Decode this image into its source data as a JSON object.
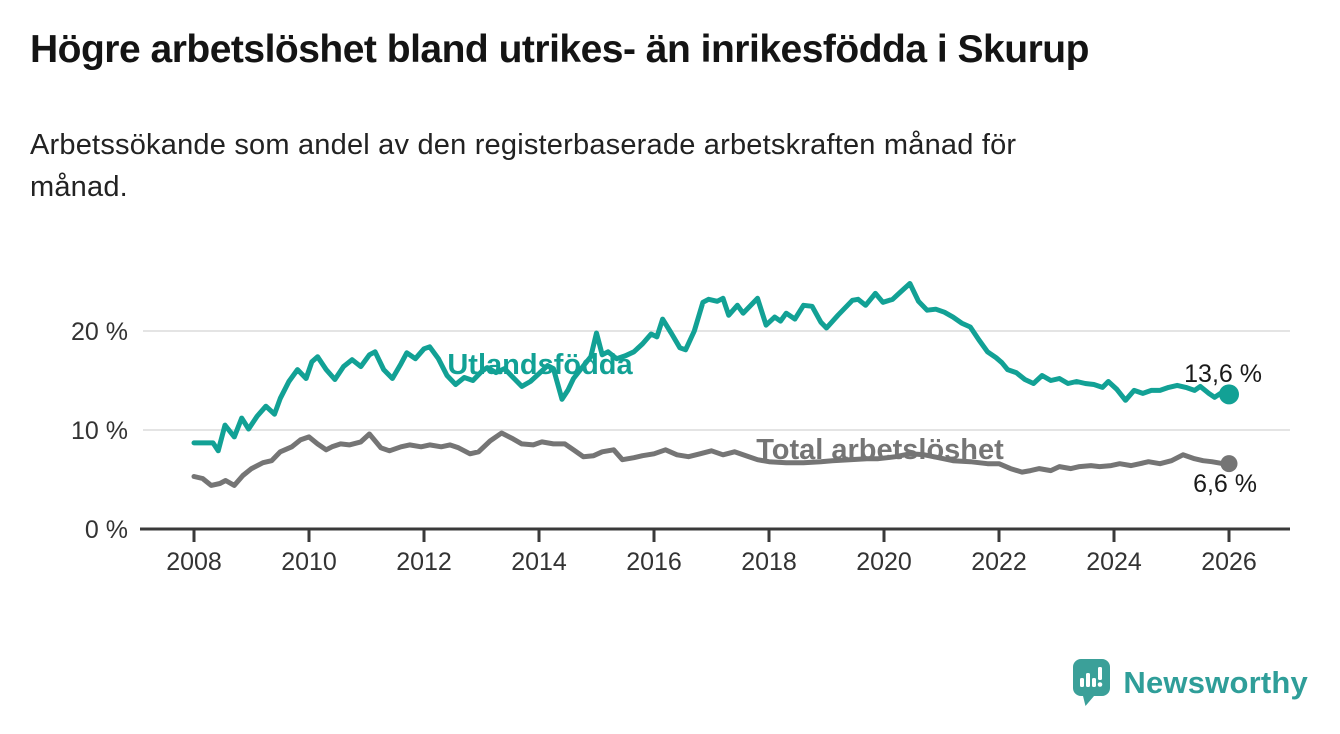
{
  "header": {
    "title": "Högre arbetslöshet bland utrikes- än inrikesfödda i Skurup",
    "subtitle_line1": "Arbetssökande som andel av den registerbaserade arbetskraften månad för",
    "subtitle_line2": "månad."
  },
  "footer": {
    "brand": "Newsworthy"
  },
  "chart_data": {
    "type": "line",
    "title": "Högre arbetslöshet bland utrikes- än inrikesfödda i Skurup",
    "subtitle": "Arbetssökande som andel av den registerbaserade arbetskraften månad för månad.",
    "unit": "%",
    "legend_position": "inline-labels",
    "x_axis": {
      "ticks": [
        2008,
        2010,
        2012,
        2014,
        2016,
        2018,
        2020,
        2022,
        2024,
        2026
      ],
      "range": [
        2007.1,
        2027.1
      ],
      "grid": false
    },
    "y_axis": {
      "ticks": [
        {
          "value": 0,
          "label": "0 %"
        },
        {
          "value": 10,
          "label": "10 %"
        },
        {
          "value": 20,
          "label": "20 %"
        }
      ],
      "range": [
        0,
        26
      ],
      "grid": true
    },
    "grid_color": "#dcdcdc",
    "axis_color": "#3a3a3a",
    "series": [
      {
        "name": "Utlandsfödda",
        "color": "#12a195",
        "end_label": "13,6 %",
        "end_value": 13.6,
        "points": [
          [
            2008.0,
            8.7
          ],
          [
            2008.1,
            8.7
          ],
          [
            2008.2,
            8.7
          ],
          [
            2008.33,
            8.7
          ],
          [
            2008.42,
            7.9
          ],
          [
            2008.54,
            10.5
          ],
          [
            2008.62,
            9.9
          ],
          [
            2008.7,
            9.3
          ],
          [
            2008.83,
            11.2
          ],
          [
            2008.95,
            10.1
          ],
          [
            2009.1,
            11.4
          ],
          [
            2009.25,
            12.4
          ],
          [
            2009.4,
            11.6
          ],
          [
            2009.5,
            13.2
          ],
          [
            2009.65,
            14.9
          ],
          [
            2009.8,
            16.1
          ],
          [
            2009.95,
            15.2
          ],
          [
            2010.05,
            16.9
          ],
          [
            2010.15,
            17.4
          ],
          [
            2010.3,
            16.1
          ],
          [
            2010.45,
            15.1
          ],
          [
            2010.6,
            16.4
          ],
          [
            2010.75,
            17.1
          ],
          [
            2010.9,
            16.4
          ],
          [
            2011.05,
            17.6
          ],
          [
            2011.15,
            17.9
          ],
          [
            2011.3,
            16.1
          ],
          [
            2011.45,
            15.2
          ],
          [
            2011.6,
            16.7
          ],
          [
            2011.7,
            17.8
          ],
          [
            2011.85,
            17.2
          ],
          [
            2012.0,
            18.2
          ],
          [
            2012.1,
            18.4
          ],
          [
            2012.25,
            17.2
          ],
          [
            2012.4,
            15.5
          ],
          [
            2012.55,
            14.6
          ],
          [
            2012.7,
            15.3
          ],
          [
            2012.85,
            15.0
          ],
          [
            2013.0,
            15.9
          ],
          [
            2013.1,
            16.3
          ],
          [
            2013.25,
            15.8
          ],
          [
            2013.4,
            16.2
          ],
          [
            2013.55,
            15.3
          ],
          [
            2013.7,
            14.4
          ],
          [
            2013.85,
            14.9
          ],
          [
            2014.0,
            15.7
          ],
          [
            2014.15,
            16.5
          ],
          [
            2014.25,
            16.2
          ],
          [
            2014.4,
            13.1
          ],
          [
            2014.5,
            14.0
          ],
          [
            2014.6,
            15.2
          ],
          [
            2014.75,
            16.3
          ],
          [
            2014.9,
            17.4
          ],
          [
            2015.0,
            19.8
          ],
          [
            2015.1,
            17.6
          ],
          [
            2015.2,
            17.9
          ],
          [
            2015.35,
            17.2
          ],
          [
            2015.5,
            17.5
          ],
          [
            2015.65,
            17.9
          ],
          [
            2015.8,
            18.7
          ],
          [
            2015.95,
            19.7
          ],
          [
            2016.05,
            19.4
          ],
          [
            2016.15,
            21.2
          ],
          [
            2016.3,
            19.8
          ],
          [
            2016.45,
            18.3
          ],
          [
            2016.55,
            18.1
          ],
          [
            2016.7,
            20.0
          ],
          [
            2016.85,
            22.9
          ],
          [
            2016.95,
            23.2
          ],
          [
            2017.1,
            23.0
          ],
          [
            2017.2,
            23.3
          ],
          [
            2017.3,
            21.6
          ],
          [
            2017.45,
            22.6
          ],
          [
            2017.55,
            21.8
          ],
          [
            2017.7,
            22.7
          ],
          [
            2017.8,
            23.3
          ],
          [
            2017.95,
            20.6
          ],
          [
            2018.1,
            21.4
          ],
          [
            2018.2,
            21.0
          ],
          [
            2018.3,
            21.8
          ],
          [
            2018.45,
            21.2
          ],
          [
            2018.6,
            22.6
          ],
          [
            2018.75,
            22.5
          ],
          [
            2018.9,
            20.9
          ],
          [
            2019.0,
            20.3
          ],
          [
            2019.2,
            21.6
          ],
          [
            2019.45,
            23.1
          ],
          [
            2019.55,
            23.2
          ],
          [
            2019.68,
            22.6
          ],
          [
            2019.85,
            23.8
          ],
          [
            2019.98,
            22.9
          ],
          [
            2020.15,
            23.2
          ],
          [
            2020.3,
            24.0
          ],
          [
            2020.45,
            24.8
          ],
          [
            2020.6,
            23.0
          ],
          [
            2020.75,
            22.1
          ],
          [
            2020.9,
            22.2
          ],
          [
            2021.05,
            21.9
          ],
          [
            2021.2,
            21.4
          ],
          [
            2021.35,
            20.8
          ],
          [
            2021.5,
            20.4
          ],
          [
            2021.65,
            19.1
          ],
          [
            2021.8,
            17.9
          ],
          [
            2021.95,
            17.3
          ],
          [
            2022.05,
            16.8
          ],
          [
            2022.15,
            16.1
          ],
          [
            2022.3,
            15.8
          ],
          [
            2022.45,
            15.1
          ],
          [
            2022.6,
            14.7
          ],
          [
            2022.75,
            15.5
          ],
          [
            2022.9,
            15.0
          ],
          [
            2023.05,
            15.2
          ],
          [
            2023.2,
            14.7
          ],
          [
            2023.35,
            14.9
          ],
          [
            2023.5,
            14.7
          ],
          [
            2023.65,
            14.6
          ],
          [
            2023.8,
            14.3
          ],
          [
            2023.9,
            14.9
          ],
          [
            2024.05,
            14.1
          ],
          [
            2024.2,
            13.0
          ],
          [
            2024.35,
            14.0
          ],
          [
            2024.5,
            13.7
          ],
          [
            2024.65,
            14.0
          ],
          [
            2024.8,
            14.0
          ],
          [
            2024.95,
            14.3
          ],
          [
            2025.1,
            14.5
          ],
          [
            2025.25,
            14.3
          ],
          [
            2025.4,
            14.0
          ],
          [
            2025.5,
            14.4
          ],
          [
            2025.65,
            13.7
          ],
          [
            2025.75,
            13.3
          ],
          [
            2025.85,
            13.7
          ],
          [
            2026.0,
            13.6
          ]
        ]
      },
      {
        "name": "Total arbetslöshet",
        "color": "#757575",
        "end_label": "6,6 %",
        "end_value": 6.6,
        "points": [
          [
            2008.0,
            5.3
          ],
          [
            2008.15,
            5.1
          ],
          [
            2008.3,
            4.4
          ],
          [
            2008.45,
            4.6
          ],
          [
            2008.55,
            4.9
          ],
          [
            2008.7,
            4.4
          ],
          [
            2008.85,
            5.4
          ],
          [
            2009.0,
            6.1
          ],
          [
            2009.2,
            6.7
          ],
          [
            2009.35,
            6.9
          ],
          [
            2009.5,
            7.8
          ],
          [
            2009.7,
            8.3
          ],
          [
            2009.85,
            9.0
          ],
          [
            2010.0,
            9.3
          ],
          [
            2010.15,
            8.6
          ],
          [
            2010.3,
            8.0
          ],
          [
            2010.4,
            8.3
          ],
          [
            2010.55,
            8.6
          ],
          [
            2010.7,
            8.5
          ],
          [
            2010.9,
            8.8
          ],
          [
            2011.05,
            9.6
          ],
          [
            2011.25,
            8.2
          ],
          [
            2011.4,
            7.9
          ],
          [
            2011.6,
            8.3
          ],
          [
            2011.75,
            8.5
          ],
          [
            2011.95,
            8.3
          ],
          [
            2012.1,
            8.5
          ],
          [
            2012.3,
            8.3
          ],
          [
            2012.45,
            8.5
          ],
          [
            2012.6,
            8.2
          ],
          [
            2012.8,
            7.6
          ],
          [
            2012.95,
            7.8
          ],
          [
            2013.15,
            8.9
          ],
          [
            2013.35,
            9.7
          ],
          [
            2013.55,
            9.1
          ],
          [
            2013.7,
            8.6
          ],
          [
            2013.9,
            8.5
          ],
          [
            2014.05,
            8.8
          ],
          [
            2014.25,
            8.6
          ],
          [
            2014.45,
            8.6
          ],
          [
            2014.6,
            8.0
          ],
          [
            2014.77,
            7.3
          ],
          [
            2014.95,
            7.4
          ],
          [
            2015.1,
            7.8
          ],
          [
            2015.3,
            8.0
          ],
          [
            2015.45,
            7.0
          ],
          [
            2015.65,
            7.2
          ],
          [
            2015.8,
            7.4
          ],
          [
            2016.0,
            7.6
          ],
          [
            2016.2,
            8.0
          ],
          [
            2016.4,
            7.5
          ],
          [
            2016.6,
            7.3
          ],
          [
            2016.8,
            7.6
          ],
          [
            2017.0,
            7.9
          ],
          [
            2017.2,
            7.5
          ],
          [
            2017.4,
            7.8
          ],
          [
            2017.6,
            7.4
          ],
          [
            2017.8,
            7.0
          ],
          [
            2018.0,
            6.8
          ],
          [
            2018.3,
            6.7
          ],
          [
            2018.6,
            6.7
          ],
          [
            2018.9,
            6.8
          ],
          [
            2019.1,
            6.9
          ],
          [
            2019.4,
            7.0
          ],
          [
            2019.7,
            7.1
          ],
          [
            2019.9,
            7.1
          ],
          [
            2020.2,
            7.3
          ],
          [
            2020.45,
            7.6
          ],
          [
            2020.7,
            7.5
          ],
          [
            2020.95,
            7.2
          ],
          [
            2021.2,
            6.9
          ],
          [
            2021.5,
            6.8
          ],
          [
            2021.8,
            6.6
          ],
          [
            2022.0,
            6.6
          ],
          [
            2022.2,
            6.1
          ],
          [
            2022.4,
            5.75
          ],
          [
            2022.55,
            5.9
          ],
          [
            2022.7,
            6.1
          ],
          [
            2022.9,
            5.9
          ],
          [
            2023.05,
            6.3
          ],
          [
            2023.25,
            6.1
          ],
          [
            2023.4,
            6.3
          ],
          [
            2023.6,
            6.4
          ],
          [
            2023.75,
            6.3
          ],
          [
            2023.95,
            6.4
          ],
          [
            2024.1,
            6.6
          ],
          [
            2024.3,
            6.4
          ],
          [
            2024.45,
            6.6
          ],
          [
            2024.6,
            6.8
          ],
          [
            2024.8,
            6.6
          ],
          [
            2025.0,
            6.9
          ],
          [
            2025.2,
            7.5
          ],
          [
            2025.4,
            7.1
          ],
          [
            2025.55,
            6.9
          ],
          [
            2025.7,
            6.8
          ],
          [
            2025.9,
            6.6
          ],
          [
            2026.0,
            6.6
          ]
        ]
      }
    ]
  }
}
